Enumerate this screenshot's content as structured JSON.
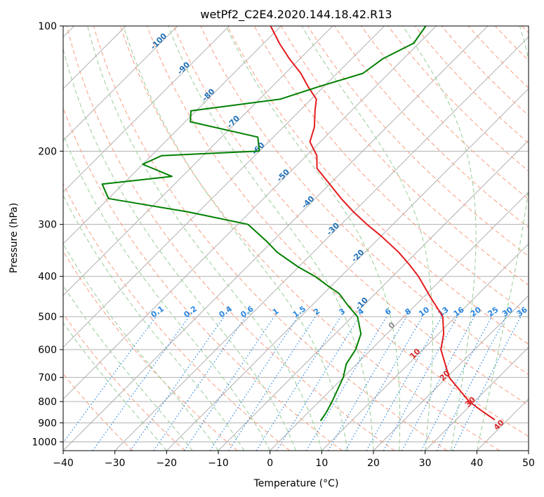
{
  "chart_data": {
    "type": "line",
    "subtype": "skew-t log-p diagram",
    "title": "wetPf2_C2E4.2020.144.18.42.R13",
    "xlabel": "Temperature (°C)",
    "ylabel": "Pressure (hPa)",
    "xlim": [
      -40,
      50
    ],
    "ylim_pressure": [
      1050,
      100
    ],
    "y_scale": "log",
    "grid": true,
    "x_ticks": [
      -40,
      -30,
      -20,
      -10,
      0,
      10,
      20,
      30,
      40,
      50
    ],
    "x_tick_labels": [
      "−40",
      "−30",
      "−20",
      "−10",
      "0",
      "10",
      "20",
      "30",
      "40",
      "50"
    ],
    "y_ticks": [
      100,
      200,
      300,
      400,
      500,
      600,
      700,
      800,
      900,
      1000
    ],
    "y_tick_labels": [
      "100",
      "200",
      "300",
      "400",
      "500",
      "600",
      "700",
      "800",
      "900",
      "1000"
    ],
    "series": [
      {
        "key": "temperature",
        "color": "#e41a1c",
        "points": [
          [
            885,
            37.5
          ],
          [
            850,
            34
          ],
          [
            800,
            29
          ],
          [
            700,
            20.5
          ],
          [
            600,
            13.5
          ],
          [
            550,
            11
          ],
          [
            500,
            7.5
          ],
          [
            450,
            1.5
          ],
          [
            400,
            -5
          ],
          [
            375,
            -9
          ],
          [
            350,
            -13.5
          ],
          [
            320,
            -20
          ],
          [
            300,
            -25
          ],
          [
            280,
            -30
          ],
          [
            260,
            -35
          ],
          [
            240,
            -40
          ],
          [
            220,
            -45.5
          ],
          [
            205,
            -48
          ],
          [
            190,
            -52
          ],
          [
            175,
            -54
          ],
          [
            160,
            -57
          ],
          [
            150,
            -59
          ],
          [
            140,
            -63
          ],
          [
            130,
            -67
          ],
          [
            120,
            -72
          ],
          [
            110,
            -77
          ],
          [
            100,
            -82
          ]
        ]
      },
      {
        "key": "dewpoint",
        "color": "#008000",
        "points": [
          [
            890,
            4
          ],
          [
            850,
            3.5
          ],
          [
            800,
            2.5
          ],
          [
            700,
            0
          ],
          [
            650,
            -2
          ],
          [
            600,
            -3
          ],
          [
            550,
            -5
          ],
          [
            500,
            -9
          ],
          [
            470,
            -13
          ],
          [
            440,
            -17
          ],
          [
            420,
            -21
          ],
          [
            400,
            -25
          ],
          [
            380,
            -30
          ],
          [
            350,
            -37
          ],
          [
            330,
            -41
          ],
          [
            300,
            -48
          ],
          [
            280,
            -62
          ],
          [
            260,
            -80
          ],
          [
            240,
            -84
          ],
          [
            230,
            -72
          ],
          [
            215,
            -80
          ],
          [
            205,
            -78
          ],
          [
            200,
            -60
          ],
          [
            185,
            -63
          ],
          [
            170,
            -79
          ],
          [
            160,
            -81
          ],
          [
            150,
            -66
          ],
          [
            140,
            -61
          ],
          [
            130,
            -55
          ],
          [
            120,
            -54
          ],
          [
            110,
            -51
          ],
          [
            100,
            -52
          ]
        ]
      }
    ],
    "isotherm_labels": [
      "-100",
      "-90",
      "-80",
      "-70",
      "-60",
      "-50",
      "-40",
      "-30",
      "-20",
      "-10",
      "0",
      "10",
      "20",
      "30",
      "40"
    ],
    "mixing_ratio_labels": [
      "0.1",
      "0.2",
      "0.4",
      "0.6",
      "1",
      "1.5",
      "2",
      "3",
      "4",
      "6",
      "8",
      "10",
      "13",
      "16",
      "20",
      "25",
      "30",
      "36"
    ],
    "colors": {
      "isotherm": "#b0b0b0",
      "dry_adiabat": "#f7a58a",
      "moist_adiabat": "#9fd09f",
      "mixing_ratio": "#2a86e0",
      "isotherm_label": "#1f6fb5",
      "warm_label": "#d62728",
      "zero_label": "#8c8c8c",
      "boundary": "#c8a27a"
    }
  }
}
